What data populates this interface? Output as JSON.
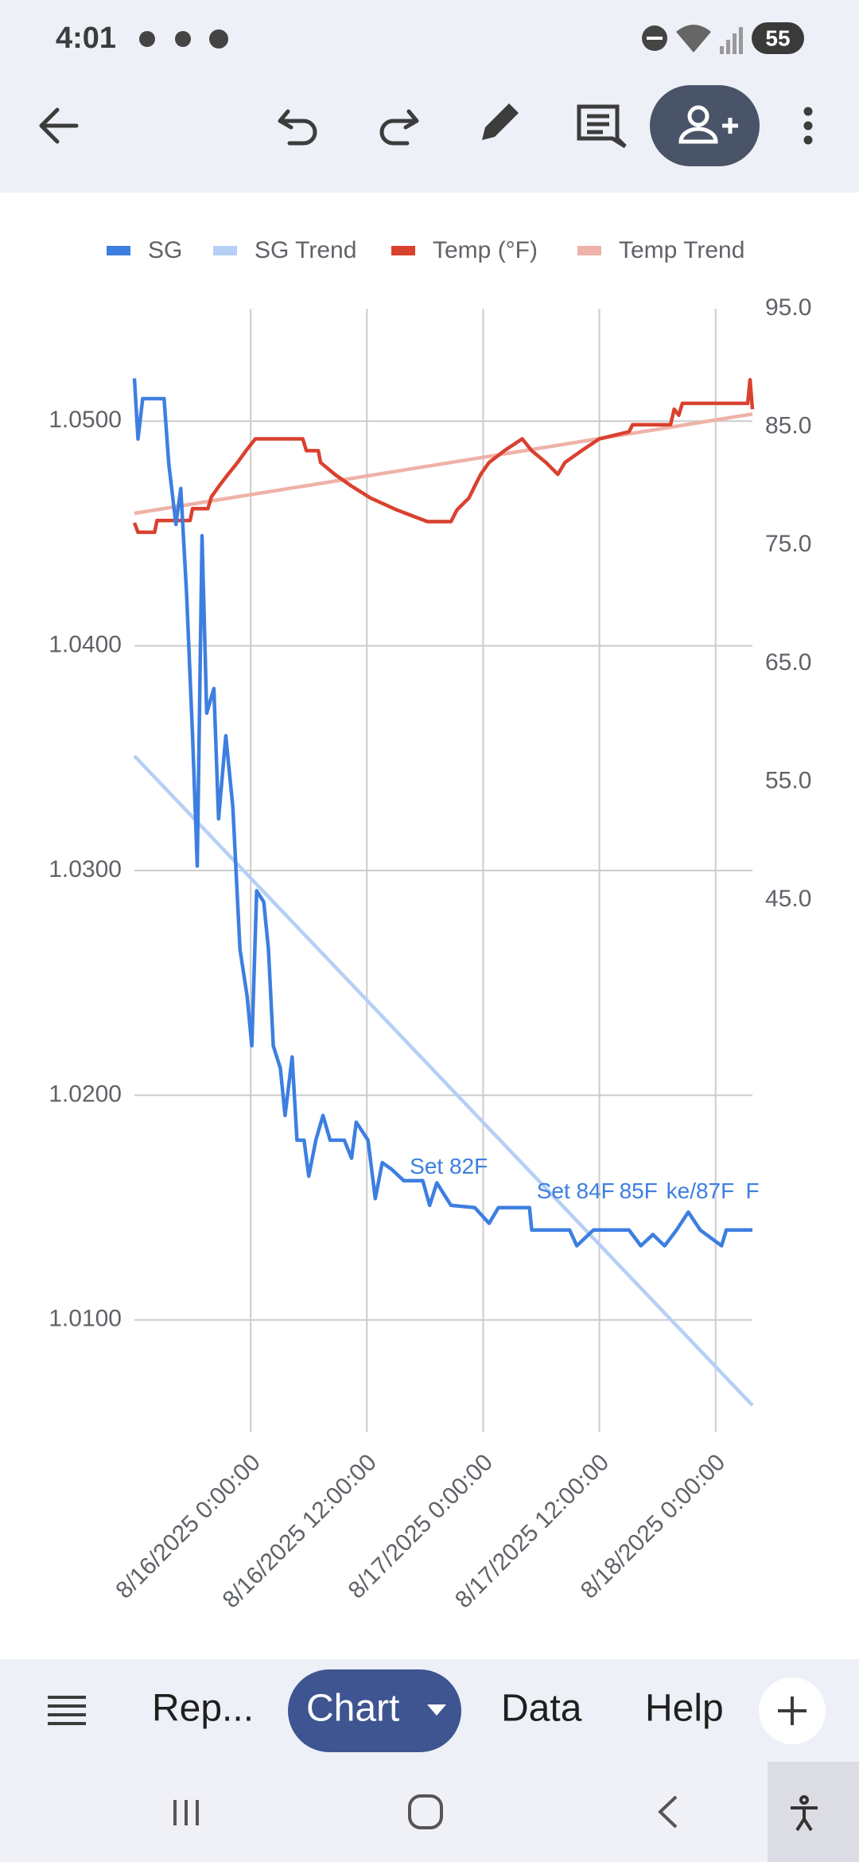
{
  "status": {
    "time": "4:01",
    "battery": "55"
  },
  "tabs": [
    "Rep...",
    "Chart",
    "Data",
    "Help"
  ],
  "chart_data": {
    "type": "line",
    "xlim": [
      "2025-08-15T12:00",
      "2025-08-18T03:48"
    ],
    "xticks": [
      {
        "value": "2025-08-16T00:00",
        "label": "8/16/2025 0:00:00"
      },
      {
        "value": "2025-08-16T12:00",
        "label": "8/16/2025 12:00:00"
      },
      {
        "value": "2025-08-17T00:00",
        "label": "8/17/2025 0:00:00"
      },
      {
        "value": "2025-08-17T12:00",
        "label": "8/17/2025 12:00:00"
      },
      {
        "value": "2025-08-18T00:00",
        "label": "8/18/2025 0:00:00"
      }
    ],
    "ylim": [
      1.005,
      1.055
    ],
    "yticks": [
      {
        "value": 1.01,
        "label": "1.0100"
      },
      {
        "value": 1.02,
        "label": "1.0200"
      },
      {
        "value": 1.03,
        "label": "1.0300"
      },
      {
        "value": 1.04,
        "label": "1.0400"
      },
      {
        "value": 1.05,
        "label": "1.0500"
      }
    ],
    "y2lim": [
      0,
      95
    ],
    "y2ticks": [
      {
        "value": 45,
        "label": "45.0"
      },
      {
        "value": 55,
        "label": "55.0"
      },
      {
        "value": 65,
        "label": "65.0"
      },
      {
        "value": 75,
        "label": "75.0"
      },
      {
        "value": 85,
        "label": "85.0"
      },
      {
        "value": 95,
        "label": "95.0"
      }
    ],
    "grid": true,
    "legend": "top",
    "series": [
      {
        "name": "SG",
        "color": "#3d7fe0",
        "width": 4.5,
        "x": [
          "2025-08-15T12:00",
          "2025-08-15T12:22",
          "2025-08-15T12:51",
          "2025-08-15T14:05",
          "2025-08-15T15:04",
          "2025-08-15T15:33",
          "2025-08-15T16:17",
          "2025-08-15T16:47",
          "2025-08-15T17:23",
          "2025-08-15T18:00",
          "2025-08-15T18:29",
          "2025-08-15T18:59",
          "2025-08-15T19:28",
          "2025-08-15T20:12",
          "2025-08-15T20:41",
          "2025-08-15T21:26",
          "2025-08-15T22:10",
          "2025-08-15T22:54",
          "2025-08-15T23:38",
          "2025-08-16T00:07",
          "2025-08-16T00:37",
          "2025-08-16T01:21",
          "2025-08-16T01:50",
          "2025-08-16T02:20",
          "2025-08-16T03:04",
          "2025-08-16T03:33",
          "2025-08-16T04:17",
          "2025-08-16T04:47",
          "2025-08-16T05:31",
          "2025-08-16T06:00",
          "2025-08-16T06:44",
          "2025-08-16T07:28",
          "2025-08-16T08:12",
          "2025-08-16T09:40",
          "2025-08-16T10:25",
          "2025-08-16T10:54",
          "2025-08-16T12:07",
          "2025-08-16T12:52",
          "2025-08-16T13:35",
          "2025-08-16T14:34",
          "2025-08-16T15:48",
          "2025-08-16T17:46",
          "2025-08-16T18:29",
          "2025-08-16T19:13",
          "2025-08-16T20:41",
          "2025-08-16T23:08",
          "2025-08-17T00:37",
          "2025-08-17T01:35",
          "2025-08-17T04:47",
          "2025-08-17T05:01",
          "2025-08-17T06:29",
          "2025-08-17T08:56",
          "2025-08-17T09:40",
          "2025-08-17T11:23",
          "2025-08-17T15:04",
          "2025-08-17T16:17",
          "2025-08-17T17:31",
          "2025-08-17T18:44",
          "2025-08-17T19:58",
          "2025-08-17T21:11",
          "2025-08-17T22:25",
          "2025-08-18T00:37",
          "2025-08-18T01:06",
          "2025-08-18T03:48"
        ],
        "values": [
          1.0519,
          1.0492,
          1.051,
          1.051,
          1.051,
          1.0481,
          1.0454,
          1.047,
          1.0423,
          1.036,
          1.0302,
          1.0449,
          1.037,
          1.0381,
          1.0323,
          1.036,
          1.0328,
          1.0265,
          1.0244,
          1.0222,
          1.0291,
          1.0286,
          1.0265,
          1.0222,
          1.0212,
          1.0191,
          1.0217,
          1.018,
          1.018,
          1.0164,
          1.018,
          1.0191,
          1.018,
          1.018,
          1.0172,
          1.0188,
          1.018,
          1.0154,
          1.017,
          1.0167,
          1.0162,
          1.0162,
          1.0151,
          1.0161,
          1.0151,
          1.015,
          1.0143,
          1.015,
          1.015,
          1.014,
          1.014,
          1.014,
          1.0133,
          1.014,
          1.014,
          1.0133,
          1.0138,
          1.0133,
          1.014,
          1.0148,
          1.014,
          1.0133,
          1.014,
          1.014
        ]
      },
      {
        "name": "SG Trend",
        "color": "#b5cff5",
        "width": 4.5,
        "x": [
          "2025-08-15T12:00",
          "2025-08-18T03:48"
        ],
        "values": [
          1.0351,
          1.0062
        ]
      },
      {
        "name": "Temp (°F)",
        "color": "#d9412f",
        "width": 4.5,
        "axis": "y2",
        "x": [
          "2025-08-15T12:00",
          "2025-08-15T12:22",
          "2025-08-15T14:05",
          "2025-08-15T14:20",
          "2025-08-15T17:45",
          "2025-08-15T18:00",
          "2025-08-15T19:35",
          "2025-08-15T19:57",
          "2025-08-15T20:49",
          "2025-08-15T21:40",
          "2025-08-15T22:39",
          "2025-08-15T23:31",
          "2025-08-16T00:29",
          "2025-08-16T05:23",
          "2025-08-16T05:45",
          "2025-08-16T06:59",
          "2025-08-16T07:13",
          "2025-08-16T08:41",
          "2025-08-16T10:25",
          "2025-08-16T12:22",
          "2025-08-16T15:04",
          "2025-08-16T18:15",
          "2025-08-16T20:41",
          "2025-08-16T21:18",
          "2025-08-16T22:32",
          "2025-08-16T23:08",
          "2025-08-16T23:45",
          "2025-08-17T00:37",
          "2025-08-17T02:12",
          "2025-08-17T04:02",
          "2025-08-17T05:01",
          "2025-08-17T06:29",
          "2025-08-17T07:43",
          "2025-08-17T08:27",
          "2025-08-17T10:10",
          "2025-08-17T12:00",
          "2025-08-17T15:04",
          "2025-08-17T15:26",
          "2025-08-17T19:21",
          "2025-08-17T19:43",
          "2025-08-17T20:12",
          "2025-08-17T20:34",
          "2025-08-18T03:19",
          "2025-08-18T03:33",
          "2025-08-18T03:48"
        ],
        "values": [
          76.9,
          76.1,
          76.1,
          77.1,
          77.1,
          78.1,
          78.1,
          79.1,
          80.1,
          81.0,
          82.0,
          83.0,
          84.0,
          84.0,
          83.0,
          83.0,
          82.0,
          81.0,
          80.0,
          79.0,
          78.0,
          77.0,
          77.0,
          78.0,
          79.0,
          80.0,
          81.0,
          82.0,
          83.0,
          84.0,
          83.0,
          82.0,
          81.0,
          82.0,
          83.0,
          84.0,
          84.6,
          85.2,
          85.2,
          86.5,
          86.0,
          87.0,
          87.0,
          89.0,
          86.5
        ]
      },
      {
        "name": "Temp Trend",
        "color": "#efb2a8",
        "width": 4.5,
        "axis": "y2",
        "x": [
          "2025-08-15T12:00",
          "2025-08-18T03:48"
        ],
        "values": [
          77.7,
          86.1
        ]
      }
    ],
    "annotations": [
      {
        "text": "Set 82F",
        "x": "2025-08-16T20:27",
        "y": 1.0151
      },
      {
        "text": "Set 84F",
        "x": "2025-08-17T09:33",
        "y": 1.014
      },
      {
        "text": "85F",
        "x": "2025-08-17T16:02",
        "y": 1.014
      },
      {
        "text": "ke/87F",
        "x": "2025-08-17T22:25",
        "y": 1.014
      },
      {
        "text": "F",
        "x": "2025-08-18T03:48",
        "y": 1.014
      }
    ]
  }
}
